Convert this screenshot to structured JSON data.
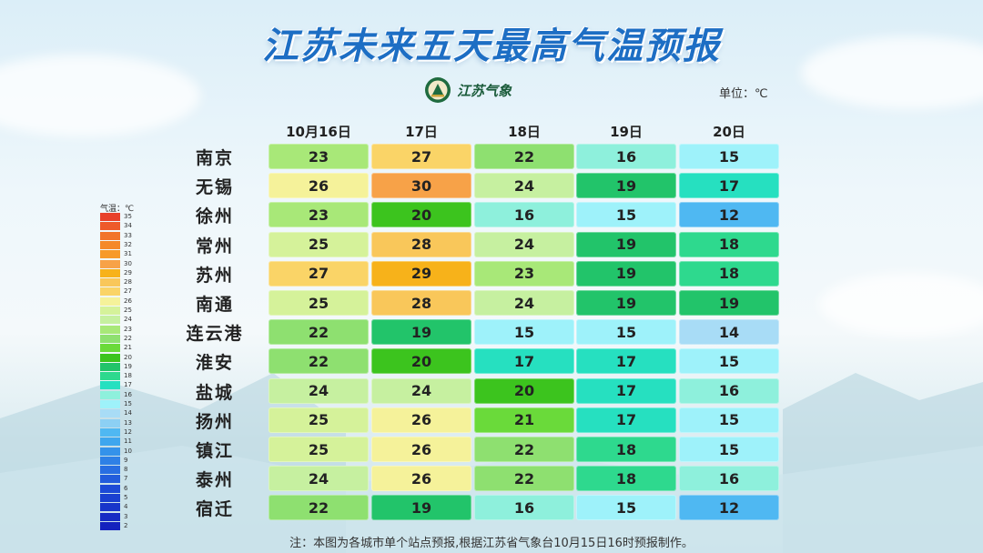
{
  "title": "江苏未来五天最高气温预报",
  "logo": {
    "text": "江苏气象",
    "icon": "meteorological-badge-icon"
  },
  "unit_label": "单位：℃",
  "dates": [
    "10月16日",
    "17日",
    "18日",
    "19日",
    "20日"
  ],
  "rows": [
    {
      "city": "南京",
      "temps": [
        23,
        27,
        22,
        16,
        15
      ]
    },
    {
      "city": "无锡",
      "temps": [
        26,
        30,
        24,
        19,
        17
      ]
    },
    {
      "city": "徐州",
      "temps": [
        23,
        20,
        16,
        15,
        12
      ]
    },
    {
      "city": "常州",
      "temps": [
        25,
        28,
        24,
        19,
        18
      ]
    },
    {
      "city": "苏州",
      "temps": [
        27,
        29,
        23,
        19,
        18
      ]
    },
    {
      "city": "南通",
      "temps": [
        25,
        28,
        24,
        19,
        19
      ]
    },
    {
      "city": "连云港",
      "temps": [
        22,
        19,
        15,
        15,
        14
      ]
    },
    {
      "city": "淮安",
      "temps": [
        22,
        20,
        17,
        17,
        15
      ]
    },
    {
      "city": "盐城",
      "temps": [
        24,
        24,
        20,
        17,
        16
      ]
    },
    {
      "city": "扬州",
      "temps": [
        25,
        26,
        21,
        17,
        15
      ]
    },
    {
      "city": "镇江",
      "temps": [
        25,
        26,
        22,
        18,
        15
      ]
    },
    {
      "city": "泰州",
      "temps": [
        24,
        26,
        22,
        18,
        16
      ]
    },
    {
      "city": "宿迁",
      "temps": [
        22,
        19,
        16,
        15,
        12
      ]
    }
  ],
  "legend": {
    "title": "气温：℃",
    "values": [
      35,
      34,
      33,
      32,
      31,
      30,
      29,
      28,
      27,
      26,
      25,
      24,
      23,
      22,
      21,
      20,
      19,
      18,
      17,
      16,
      15,
      14,
      13,
      12,
      11,
      10,
      9,
      8,
      7,
      6,
      5,
      4,
      3,
      2
    ]
  },
  "color_scale": {
    "35": "#e8402a",
    "34": "#ee5a2a",
    "33": "#f2742a",
    "32": "#f5892a",
    "31": "#f79a28",
    "30": "#f7a248",
    "29": "#f7b21a",
    "28": "#f9c75a",
    "27": "#fad467",
    "26": "#f5f29a",
    "25": "#d5f29a",
    "24": "#c6f0a0",
    "23": "#a8e878",
    "22": "#8ee070",
    "21": "#6ada3a",
    "20": "#3cc41e",
    "19": "#22c46a",
    "18": "#2ed98e",
    "17": "#26e0c0",
    "16": "#8ef0dc",
    "15": "#9ef2fa",
    "14": "#a8dcf6",
    "13": "#8cd0f4",
    "12": "#4fb8f2",
    "11": "#3ea6ee",
    "10": "#3492ea",
    "9": "#2e80e6",
    "8": "#286ee2",
    "7": "#225cdc",
    "6": "#1c4ad6",
    "5": "#1a40d0",
    "4": "#1836ca",
    "3": "#162cc4",
    "2": "#1422be"
  },
  "note": "注：本图为各城市单个站点预报,根据江苏省气象台10月15日16时预报制作。"
}
